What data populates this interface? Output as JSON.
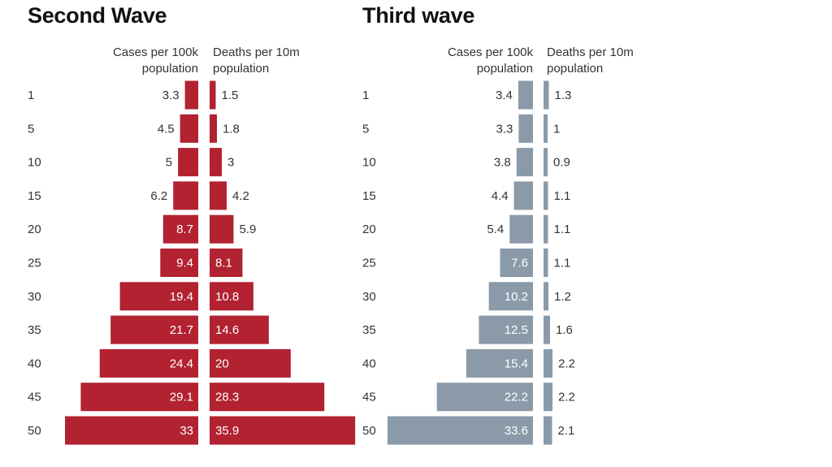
{
  "chart_data": [
    {
      "type": "bar",
      "orientation": "horizontal-butterfly",
      "title": "Second Wave",
      "categories": [
        "1",
        "5",
        "10",
        "15",
        "20",
        "25",
        "30",
        "35",
        "40",
        "45",
        "50"
      ],
      "series": [
        {
          "name": "Cases per 100k population",
          "values": [
            3.3,
            4.5,
            5,
            6.2,
            8.7,
            9.4,
            19.4,
            21.7,
            24.4,
            29.1,
            33
          ]
        },
        {
          "name": "Deaths per 10m population",
          "values": [
            1.5,
            1.8,
            3,
            4.2,
            5.9,
            8.1,
            10.8,
            14.6,
            20,
            28.3,
            35.9
          ]
        }
      ],
      "color": "#b22231",
      "grid": false,
      "legend": "none"
    },
    {
      "type": "bar",
      "orientation": "horizontal-butterfly",
      "title": "Third wave",
      "categories": [
        "1",
        "5",
        "10",
        "15",
        "20",
        "25",
        "30",
        "35",
        "40",
        "45",
        "50"
      ],
      "series": [
        {
          "name": "Cases per 100k population",
          "values": [
            3.4,
            3.3,
            3.8,
            4.4,
            5.4,
            7.6,
            10.2,
            12.5,
            15.4,
            22.2,
            33.6
          ]
        },
        {
          "name": "Deaths per 10m population",
          "values": [
            1.3,
            1,
            0.9,
            1.1,
            1.1,
            1.1,
            1.2,
            1.6,
            2.2,
            2.2,
            2.1
          ]
        }
      ],
      "color": "#8a9aa8",
      "grid": false,
      "legend": "none"
    }
  ],
  "headers": {
    "cases_line1": "Cases per 100k",
    "cases_line2": "population",
    "deaths_line1": "Deaths per 10m",
    "deaths_line2": "population"
  }
}
